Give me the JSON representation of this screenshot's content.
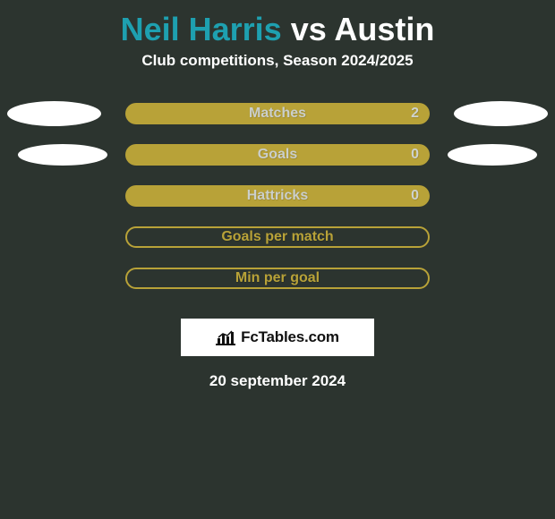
{
  "colors": {
    "player1": "#1ea0b0",
    "player2": "#ffffff",
    "accent": "#b8a238",
    "label_text": "#cbcfcb",
    "value_text": "#cfd3cf",
    "bg": "#2c342f"
  },
  "title": {
    "player1": "Neil Harris",
    "vs": " vs ",
    "player2": "Austin"
  },
  "subtitle": "Club competitions, Season 2024/2025",
  "stats": [
    {
      "label": "Matches",
      "value": "2",
      "filled": true,
      "show_value": true,
      "ellipses": "large"
    },
    {
      "label": "Goals",
      "value": "0",
      "filled": true,
      "show_value": true,
      "ellipses": "small"
    },
    {
      "label": "Hattricks",
      "value": "0",
      "filled": true,
      "show_value": true,
      "ellipses": "none"
    },
    {
      "label": "Goals per match",
      "value": "",
      "filled": false,
      "show_value": false,
      "ellipses": "none"
    },
    {
      "label": "Min per goal",
      "value": "",
      "filled": false,
      "show_value": false,
      "ellipses": "none"
    }
  ],
  "branding": "FcTables.com",
  "date": "20 september 2024"
}
